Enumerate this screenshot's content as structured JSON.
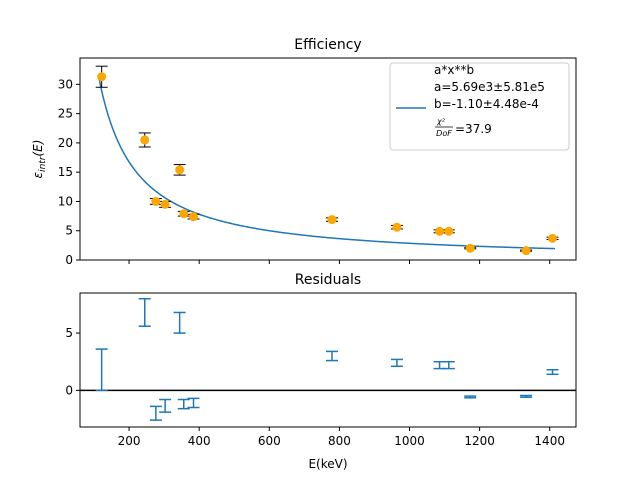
{
  "chart_data": [
    {
      "type": "scatter",
      "title": "Efficiency",
      "xlabel": "",
      "ylabel": "ε_intr(E)",
      "ylabel_main": "ε",
      "ylabel_sub": "intr",
      "ylabel_arg": "(E)",
      "xlim": [
        60,
        1475
      ],
      "ylim": [
        0,
        34.5
      ],
      "yticks": [
        0,
        5,
        10,
        15,
        20,
        25,
        30
      ],
      "xticks": [
        200,
        400,
        600,
        800,
        1000,
        1200,
        1400
      ],
      "points": [
        {
          "x": 121.8,
          "y": 31.3,
          "err": 1.8
        },
        {
          "x": 244.7,
          "y": 20.5,
          "err": 1.2
        },
        {
          "x": 276.4,
          "y": 10.0,
          "err": 0.5
        },
        {
          "x": 302.9,
          "y": 9.5,
          "err": 0.5
        },
        {
          "x": 344.3,
          "y": 15.4,
          "err": 0.9
        },
        {
          "x": 356.0,
          "y": 7.9,
          "err": 0.4
        },
        {
          "x": 383.8,
          "y": 7.4,
          "err": 0.4
        },
        {
          "x": 778.9,
          "y": 6.9,
          "err": 0.3
        },
        {
          "x": 964.1,
          "y": 5.6,
          "err": 0.3
        },
        {
          "x": 1085.8,
          "y": 4.9,
          "err": 0.25
        },
        {
          "x": 1112.1,
          "y": 4.9,
          "err": 0.25
        },
        {
          "x": 1173.2,
          "y": 2.0,
          "err": 0.1
        },
        {
          "x": 1332.5,
          "y": 1.6,
          "err": 0.1
        },
        {
          "x": 1408.0,
          "y": 3.7,
          "err": 0.2
        }
      ],
      "fit": {
        "a": 5690,
        "b": -1.1
      },
      "colors": {
        "points": "#ffa500",
        "errorbars": "#000000",
        "fit": "#1f77b4"
      },
      "legend": {
        "placement": "top-right",
        "line1": "a*x**b",
        "line2": "a=5.69e3±5.81e5",
        "line3": "b=-1.10±4.48e-4",
        "chi_num": "χ²",
        "chi_den": "DoF",
        "chi_val": "=37.9"
      }
    },
    {
      "type": "scatter",
      "title": "Residuals",
      "xlabel": "E(keV)",
      "ylabel": "",
      "xlim": [
        60,
        1475
      ],
      "ylim": [
        -3.2,
        8.5
      ],
      "yticks": [
        0,
        5
      ],
      "xticks": [
        200,
        400,
        600,
        800,
        1000,
        1200,
        1400
      ],
      "xtick_labels": [
        "200",
        "400",
        "600",
        "800",
        "1000",
        "1200",
        "1400"
      ],
      "zero_line": true,
      "residuals": [
        {
          "x": 121.8,
          "lo": 0.0,
          "hi": 3.6
        },
        {
          "x": 244.7,
          "lo": 5.6,
          "hi": 8.0
        },
        {
          "x": 276.4,
          "lo": -2.6,
          "hi": -1.4
        },
        {
          "x": 302.9,
          "lo": -1.9,
          "hi": -0.8
        },
        {
          "x": 344.3,
          "lo": 5.0,
          "hi": 6.8
        },
        {
          "x": 356.0,
          "lo": -1.6,
          "hi": -0.8
        },
        {
          "x": 383.8,
          "lo": -1.5,
          "hi": -0.7
        },
        {
          "x": 778.9,
          "lo": 2.6,
          "hi": 3.4
        },
        {
          "x": 964.1,
          "lo": 2.1,
          "hi": 2.7
        },
        {
          "x": 1085.8,
          "lo": 1.9,
          "hi": 2.5
        },
        {
          "x": 1112.1,
          "lo": 1.9,
          "hi": 2.5
        },
        {
          "x": 1173.2,
          "lo": -0.65,
          "hi": -0.5
        },
        {
          "x": 1332.5,
          "lo": -0.6,
          "hi": -0.45
        },
        {
          "x": 1408.0,
          "lo": 1.4,
          "hi": 1.8
        }
      ],
      "colors": {
        "errorbars": "#1f77b4",
        "zero_line": "#000000"
      }
    }
  ]
}
